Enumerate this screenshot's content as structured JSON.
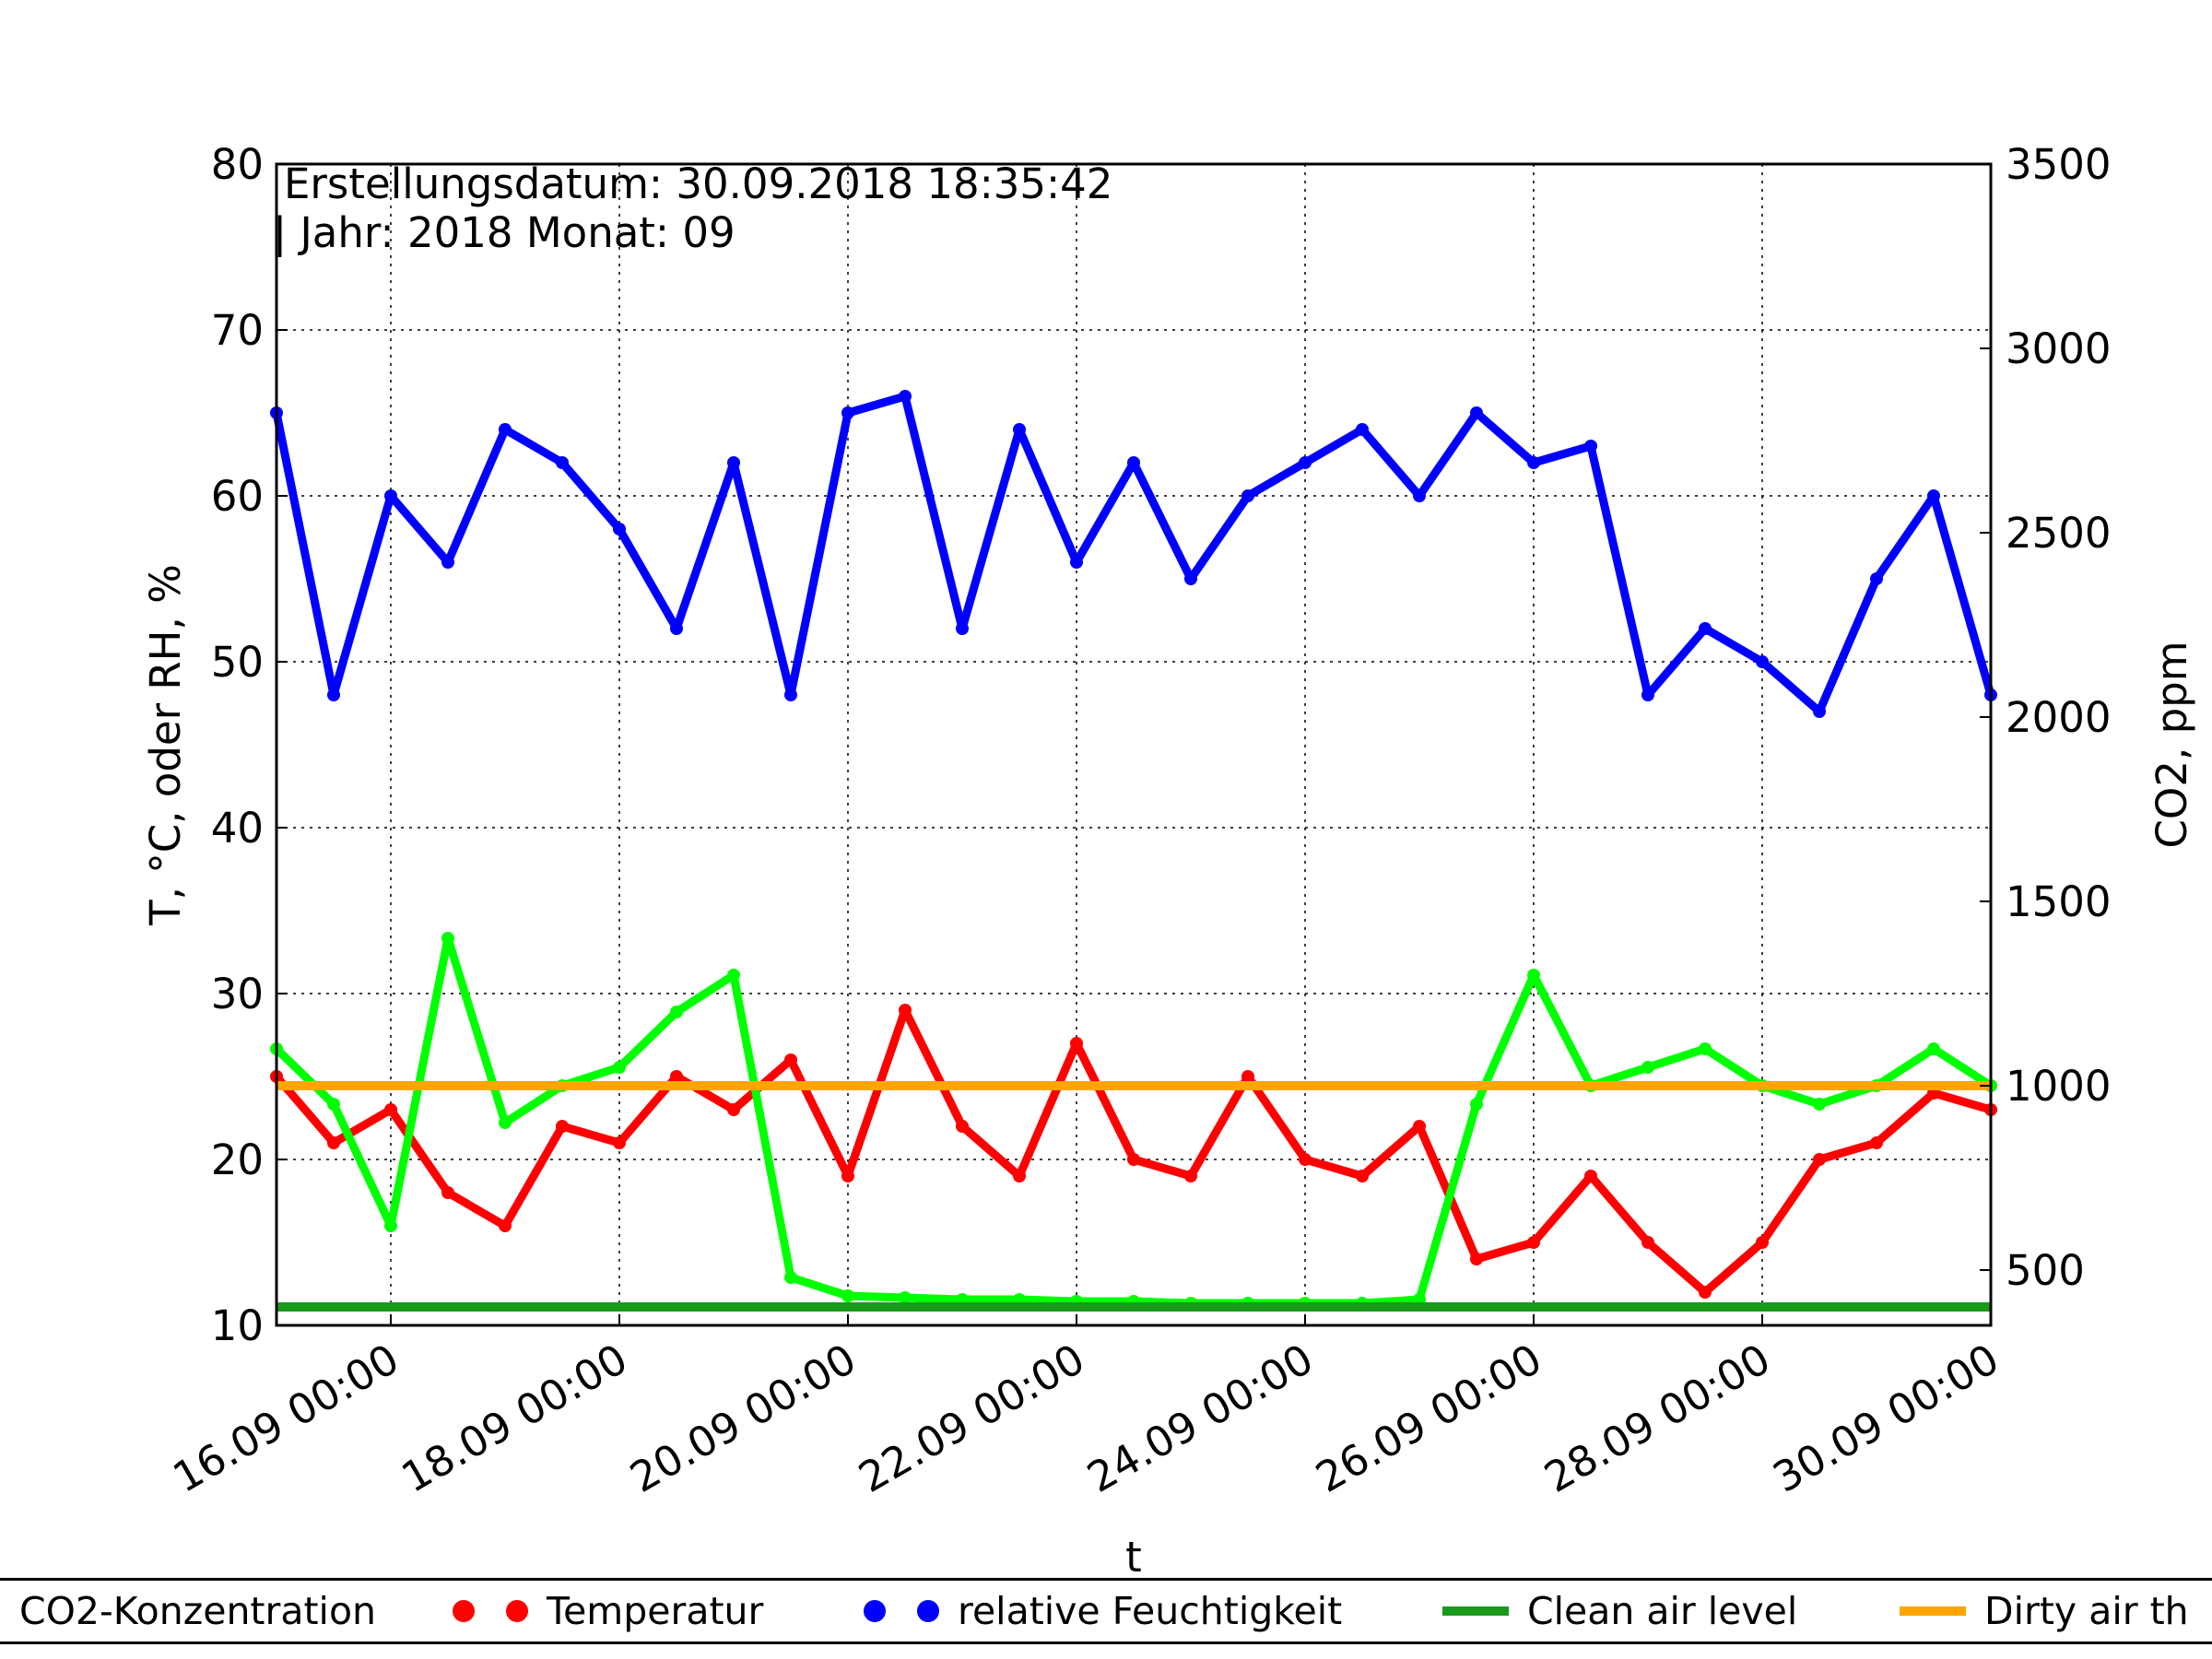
{
  "annotation": {
    "line1": "Erstellungsdatum: 30.09.2018 18:35:42",
    "line2": "| Jahr: 2018 Monat: 09"
  },
  "legend": {
    "items": [
      {
        "label": "CO2-Konzentration",
        "marker": "dots",
        "color": "#00ff00"
      },
      {
        "label": "Temperatur",
        "marker": "dots",
        "color": "#ff0000"
      },
      {
        "label": "relative Feuchtigkeit",
        "marker": "dots",
        "color": "#0000ff"
      },
      {
        "label": "Clean air level",
        "marker": "line",
        "color": "#1a9a1a"
      },
      {
        "label": "Dirty air th",
        "marker": "line",
        "color": "#ffa500"
      }
    ],
    "placement": "bottom"
  },
  "chart_data": {
    "type": "scatter",
    "xlabel": "t",
    "ylabel": "T, °C, oder RH, %",
    "y2label": "CO2, ppm",
    "xlim": [
      "2018-09-15 00:00",
      "2018-09-30 00:00"
    ],
    "ylim": [
      10,
      80
    ],
    "y2lim": [
      350,
      3500
    ],
    "grid": true,
    "x_ticks": [
      "16.09 00:00",
      "18.09 00:00",
      "20.09 00:00",
      "22.09 00:00",
      "24.09 00:00",
      "26.09 00:00",
      "28.09 00:00",
      "30.09 00:00"
    ],
    "y_ticks": [
      "10",
      "20",
      "30",
      "40",
      "50",
      "60",
      "70",
      "80"
    ],
    "y2_ticks": [
      "500",
      "1000",
      "1500",
      "2000",
      "2500",
      "3000",
      "3500"
    ],
    "series": [
      {
        "name": "CO2-Konzentration",
        "axis": "right",
        "color": "#00ff00",
        "x": [
          "2018-09-15 00:00",
          "2018-09-15 12:00",
          "2018-09-16 00:00",
          "2018-09-16 12:00",
          "2018-09-17 00:00",
          "2018-09-17 12:00",
          "2018-09-18 00:00",
          "2018-09-18 12:00",
          "2018-09-19 00:00",
          "2018-09-19 12:00",
          "2018-09-20 00:00",
          "2018-09-20 12:00",
          "2018-09-21 00:00",
          "2018-09-21 12:00",
          "2018-09-22 00:00",
          "2018-09-22 12:00",
          "2018-09-23 00:00",
          "2018-09-23 12:00",
          "2018-09-24 00:00",
          "2018-09-24 12:00",
          "2018-09-25 00:00",
          "2018-09-25 12:00",
          "2018-09-26 00:00",
          "2018-09-26 12:00",
          "2018-09-27 00:00",
          "2018-09-27 12:00",
          "2018-09-28 00:00",
          "2018-09-28 12:00",
          "2018-09-29 00:00",
          "2018-09-29 12:00",
          "2018-09-30 00:00"
        ],
        "y": [
          1100,
          950,
          620,
          1400,
          900,
          1000,
          1050,
          1200,
          1300,
          480,
          430,
          425,
          420,
          420,
          415,
          415,
          410,
          410,
          410,
          410,
          420,
          950,
          1300,
          1000,
          1050,
          1100,
          1000,
          950,
          1000,
          1100,
          1000
        ]
      },
      {
        "name": "Temperatur",
        "axis": "left",
        "color": "#ff0000",
        "x": [
          "2018-09-15 00:00",
          "2018-09-15 12:00",
          "2018-09-16 00:00",
          "2018-09-16 12:00",
          "2018-09-17 00:00",
          "2018-09-17 12:00",
          "2018-09-18 00:00",
          "2018-09-18 12:00",
          "2018-09-19 00:00",
          "2018-09-19 12:00",
          "2018-09-20 00:00",
          "2018-09-20 12:00",
          "2018-09-21 00:00",
          "2018-09-21 12:00",
          "2018-09-22 00:00",
          "2018-09-22 12:00",
          "2018-09-23 00:00",
          "2018-09-23 12:00",
          "2018-09-24 00:00",
          "2018-09-24 12:00",
          "2018-09-25 00:00",
          "2018-09-25 12:00",
          "2018-09-26 00:00",
          "2018-09-26 12:00",
          "2018-09-27 00:00",
          "2018-09-27 12:00",
          "2018-09-28 00:00",
          "2018-09-28 12:00",
          "2018-09-29 00:00",
          "2018-09-29 12:00",
          "2018-09-30 00:00"
        ],
        "y": [
          25,
          21,
          23,
          18,
          16,
          22,
          21,
          25,
          23,
          26,
          19,
          29,
          22,
          19,
          27,
          20,
          19,
          25,
          20,
          19,
          22,
          14,
          15,
          19,
          15,
          12,
          15,
          20,
          21,
          24,
          23
        ]
      },
      {
        "name": "relative Feuchtigkeit",
        "axis": "left",
        "color": "#0000ff",
        "x": [
          "2018-09-15 00:00",
          "2018-09-15 12:00",
          "2018-09-16 00:00",
          "2018-09-16 12:00",
          "2018-09-17 00:00",
          "2018-09-17 12:00",
          "2018-09-18 00:00",
          "2018-09-18 12:00",
          "2018-09-19 00:00",
          "2018-09-19 12:00",
          "2018-09-20 00:00",
          "2018-09-20 12:00",
          "2018-09-21 00:00",
          "2018-09-21 12:00",
          "2018-09-22 00:00",
          "2018-09-22 12:00",
          "2018-09-23 00:00",
          "2018-09-23 12:00",
          "2018-09-24 00:00",
          "2018-09-24 12:00",
          "2018-09-25 00:00",
          "2018-09-25 12:00",
          "2018-09-26 00:00",
          "2018-09-26 12:00",
          "2018-09-27 00:00",
          "2018-09-27 12:00",
          "2018-09-28 00:00",
          "2018-09-28 12:00",
          "2018-09-29 00:00",
          "2018-09-29 12:00",
          "2018-09-30 00:00"
        ],
        "y": [
          65,
          48,
          60,
          56,
          64,
          62,
          58,
          52,
          62,
          48,
          65,
          66,
          52,
          64,
          56,
          62,
          55,
          60,
          62,
          64,
          60,
          65,
          62,
          63,
          48,
          52,
          50,
          47,
          55,
          60,
          48
        ]
      },
      {
        "name": "Clean air level",
        "axis": "right",
        "color": "#1a9a1a",
        "x": [
          "2018-09-15 00:00",
          "2018-09-30 00:00"
        ],
        "y": [
          400,
          400
        ]
      },
      {
        "name": "Dirty air th",
        "axis": "right",
        "color": "#ffa500",
        "x": [
          "2018-09-15 00:00",
          "2018-09-30 00:00"
        ],
        "y": [
          1000,
          1000
        ]
      }
    ]
  }
}
